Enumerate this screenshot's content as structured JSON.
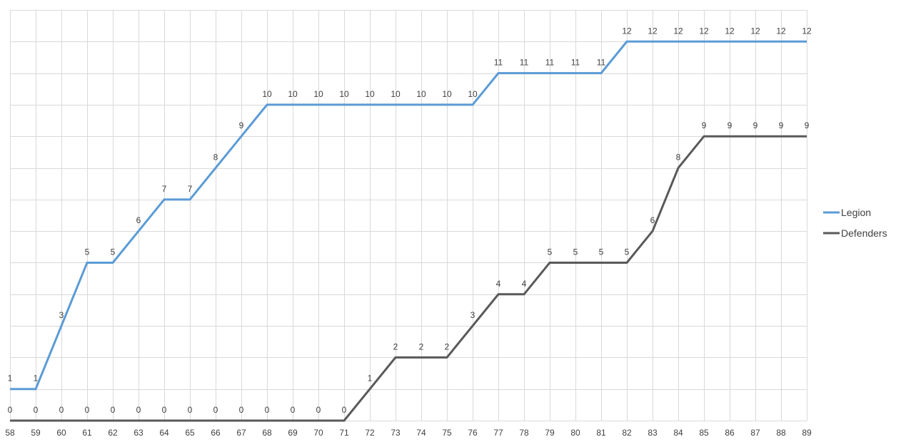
{
  "chart_data": {
    "type": "line",
    "title": "",
    "xlabel": "",
    "ylabel": "",
    "x": [
      58,
      59,
      60,
      61,
      62,
      63,
      64,
      65,
      66,
      67,
      68,
      69,
      70,
      71,
      72,
      73,
      74,
      75,
      76,
      77,
      78,
      79,
      80,
      81,
      82,
      83,
      84,
      85,
      86,
      87,
      88,
      89
    ],
    "ylim": [
      0,
      13
    ],
    "grid": true,
    "legend_position": "right",
    "series": [
      {
        "name": "Legion",
        "color": "#5b9bd5",
        "values": [
          1,
          1,
          3,
          5,
          5,
          6,
          7,
          7,
          8,
          9,
          10,
          10,
          10,
          10,
          10,
          10,
          10,
          10,
          10,
          11,
          11,
          11,
          11,
          11,
          12,
          12,
          12,
          12,
          12,
          12,
          12,
          12
        ]
      },
      {
        "name": "Defenders",
        "color": "#595959",
        "values": [
          0,
          0,
          0,
          0,
          0,
          0,
          0,
          0,
          0,
          0,
          0,
          0,
          0,
          0,
          1,
          2,
          2,
          2,
          3,
          4,
          4,
          5,
          5,
          5,
          5,
          6,
          8,
          9,
          9,
          9,
          9,
          9
        ]
      }
    ]
  }
}
